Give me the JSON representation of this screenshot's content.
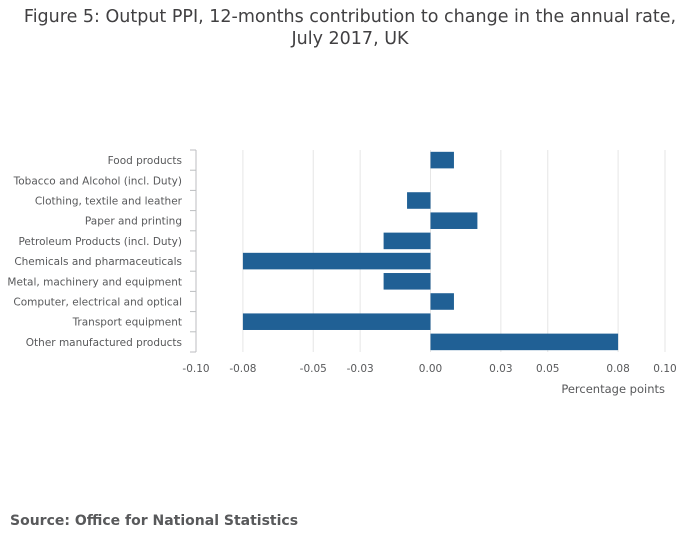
{
  "chart_data": {
    "type": "bar",
    "orientation": "horizontal",
    "title": "Figure 5: Output PPI, 12-months contribution to change in the annual rate, July 2017, UK",
    "title_lines": [
      "Figure 5: Output PPI, 12-months contribution to change in the annual rate,",
      "July 2017, UK"
    ],
    "categories": [
      "Food products",
      "Tobacco and Alcohol (incl. Duty)",
      "Clothing, textile and leather",
      "Paper and printing",
      "Petroleum Products (incl. Duty)",
      "Chemicals and pharmaceuticals",
      "Metal, machinery and equipment",
      "Computer, electrical and optical",
      "Transport equipment",
      "Other manufactured products"
    ],
    "values": [
      0.01,
      0.0,
      -0.01,
      0.02,
      -0.02,
      -0.08,
      -0.02,
      0.01,
      -0.08,
      0.08
    ],
    "xlabel": "Percentage points",
    "ylabel": "",
    "xlim": [
      -0.1,
      0.1
    ],
    "ticks": [
      -0.1,
      -0.08,
      -0.05,
      -0.03,
      0.0,
      0.03,
      0.05,
      0.08,
      0.1
    ],
    "tick_labels": [
      "-0.10",
      "-0.08",
      "-0.05",
      "-0.03",
      "0.00",
      "0.03",
      "0.05",
      "0.08",
      "0.10"
    ],
    "bar_color": "#206095",
    "grid": true
  },
  "source": "Source: Office for National Statistics"
}
